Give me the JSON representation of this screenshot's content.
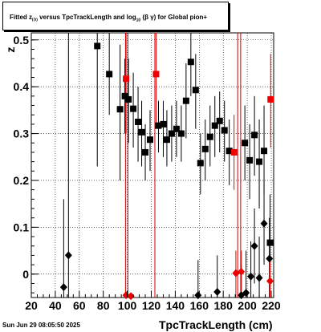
{
  "title_parts": [
    "Fitted  z",
    "I70",
    " versus TpcTrackLength and log",
    "10",
    " (β  γ) for Global pion+"
  ],
  "footer": "Sun Jun 29 08:05:50 2025",
  "chart_data": {
    "type": "scatter",
    "xlabel": "TpcTrackLength (cm)",
    "ylabel": "z",
    "xlim": [
      20,
      222
    ],
    "ylim": [
      -0.05,
      0.515
    ],
    "xticks": [
      20,
      40,
      60,
      80,
      100,
      120,
      140,
      160,
      180,
      200,
      220
    ],
    "yticks": [
      0,
      0.1,
      0.2,
      0.3,
      0.4,
      0.5
    ],
    "ytick_labels": [
      "0",
      "0.1",
      "0.2",
      "0.3",
      "0.4",
      "0.5"
    ],
    "grid": true,
    "vertical_lines": [
      {
        "x": 98.5,
        "color": "#cc0000"
      },
      {
        "x": 100.5,
        "color": "#cc0000"
      },
      {
        "x": 123,
        "color": "#cc0000"
      },
      {
        "x": 192,
        "color": "#cc0000"
      },
      {
        "x": 194.5,
        "color": "#cc0000"
      }
    ],
    "series": [
      {
        "marker": "square",
        "color": "#000000",
        "points": [
          {
            "x": 75,
            "y": 0.487,
            "lo": 0.23,
            "hi": 0.515
          },
          {
            "x": 85,
            "y": 0.427,
            "lo": 0.34,
            "hi": 0.515
          },
          {
            "x": 94,
            "y": 0.352,
            "lo": 0.2,
            "hi": 0.49
          },
          {
            "x": 98,
            "y": 0.38,
            "lo": 0.3,
            "hi": 0.46
          },
          {
            "x": 101,
            "y": 0.373,
            "lo": 0.28,
            "hi": 0.46
          },
          {
            "x": 105,
            "y": 0.353,
            "lo": 0.27,
            "hi": 0.43
          },
          {
            "x": 109,
            "y": 0.325,
            "lo": 0.24,
            "hi": 0.4
          },
          {
            "x": 112,
            "y": 0.303,
            "lo": 0.23,
            "hi": 0.37
          },
          {
            "x": 115,
            "y": 0.26,
            "lo": 0.2,
            "hi": 0.32
          },
          {
            "x": 119,
            "y": 0.287,
            "lo": 0.22,
            "hi": 0.35
          },
          {
            "x": 126,
            "y": 0.317,
            "lo": 0.26,
            "hi": 0.37
          },
          {
            "x": 130,
            "y": 0.32,
            "lo": 0.25,
            "hi": 0.37
          },
          {
            "x": 133,
            "y": 0.287,
            "lo": 0.23,
            "hi": 0.35
          },
          {
            "x": 137,
            "y": 0.3,
            "lo": 0.24,
            "hi": 0.36
          },
          {
            "x": 141,
            "y": 0.31,
            "lo": 0.25,
            "hi": 0.37
          },
          {
            "x": 145,
            "y": 0.3,
            "lo": 0.24,
            "hi": 0.36
          },
          {
            "x": 149,
            "y": 0.37,
            "lo": 0.29,
            "hi": 0.45
          },
          {
            "x": 153,
            "y": 0.453,
            "lo": 0.38,
            "hi": 0.515
          },
          {
            "x": 157,
            "y": 0.393,
            "lo": 0.31,
            "hi": 0.47
          },
          {
            "x": 161,
            "y": 0.237,
            "lo": 0.17,
            "hi": 0.3
          },
          {
            "x": 165,
            "y": 0.267,
            "lo": 0.2,
            "hi": 0.33
          },
          {
            "x": 169,
            "y": 0.293,
            "lo": 0.23,
            "hi": 0.36
          },
          {
            "x": 173,
            "y": 0.317,
            "lo": 0.25,
            "hi": 0.38
          },
          {
            "x": 177,
            "y": 0.327,
            "lo": 0.26,
            "hi": 0.39
          },
          {
            "x": 181,
            "y": 0.307,
            "lo": 0.24,
            "hi": 0.37
          },
          {
            "x": 185,
            "y": 0.263,
            "lo": 0.19,
            "hi": 0.33
          },
          {
            "x": 198,
            "y": 0.28,
            "lo": 0.2,
            "hi": 0.36
          },
          {
            "x": 202,
            "y": 0.243,
            "lo": 0.16,
            "hi": 0.32
          },
          {
            "x": 206,
            "y": 0.297,
            "lo": 0.21,
            "hi": 0.38
          },
          {
            "x": 210,
            "y": 0.24,
            "lo": 0.14,
            "hi": 0.33
          },
          {
            "x": 214,
            "y": 0.263,
            "lo": 0.17,
            "hi": 0.36
          },
          {
            "x": 219,
            "y": 0.067,
            "lo": -0.05,
            "hi": 0.17
          }
        ]
      },
      {
        "marker": "square",
        "color": "#ee0000",
        "points": [
          {
            "x": 99,
            "y": 0.417,
            "lo": 0.3,
            "hi": 0.515
          },
          {
            "x": 124,
            "y": 0.427,
            "lo": 0.32,
            "hi": 0.515
          },
          {
            "x": 189,
            "y": 0.26,
            "lo": 0.18,
            "hi": 0.34
          },
          {
            "x": 219.5,
            "y": 0.373,
            "lo": 0.27,
            "hi": 0.47
          }
        ]
      },
      {
        "marker": "diamond",
        "color": "#000000",
        "points": [
          {
            "x": 47,
            "y": -0.028,
            "lo": -0.05,
            "hi": 0.16
          },
          {
            "x": 51,
            "y": 0.04,
            "lo": -0.05,
            "hi": 0.515
          },
          {
            "x": 159,
            "y": -0.045,
            "lo": -0.05,
            "hi": 0.03
          },
          {
            "x": 175,
            "y": -0.038,
            "lo": -0.05,
            "hi": 0.04
          },
          {
            "x": 195,
            "y": -0.045,
            "lo": -0.05,
            "hi": 0.02
          },
          {
            "x": 199,
            "y": -0.04,
            "lo": -0.05,
            "hi": 0.05
          },
          {
            "x": 203,
            "y": -0.005,
            "lo": -0.05,
            "hi": 0.07
          },
          {
            "x": 206,
            "y": 0.06,
            "lo": -0.02,
            "hi": 0.14
          },
          {
            "x": 210,
            "y": -0.008,
            "lo": -0.05,
            "hi": 0.08
          },
          {
            "x": 214,
            "y": 0.108,
            "lo": 0.02,
            "hi": 0.2
          },
          {
            "x": 218.5,
            "y": 0.033,
            "lo": -0.05,
            "hi": 0.12
          }
        ]
      },
      {
        "marker": "diamond",
        "color": "#ee0000",
        "points": [
          {
            "x": 99,
            "y": -0.045,
            "lo": -0.05,
            "hi": -0.04
          },
          {
            "x": 103,
            "y": -0.047,
            "lo": -0.05,
            "hi": -0.04
          },
          {
            "x": 190.5,
            "y": 0.002,
            "lo": -0.05,
            "hi": 0.05
          },
          {
            "x": 195,
            "y": 0.005,
            "lo": -0.05,
            "hi": 0.05
          },
          {
            "x": 219,
            "y": -0.015,
            "lo": -0.05,
            "hi": 0.03
          }
        ]
      }
    ]
  }
}
